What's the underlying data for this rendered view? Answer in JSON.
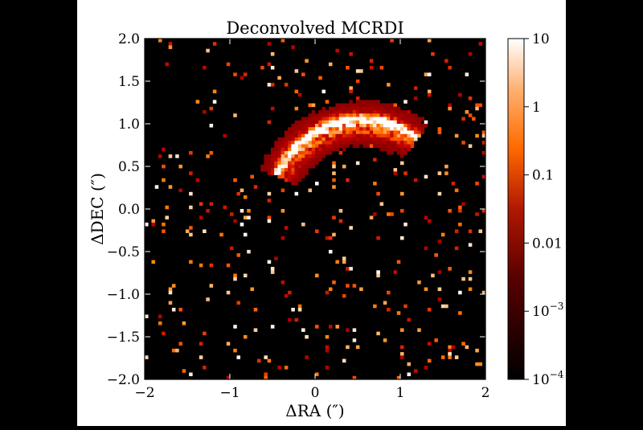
{
  "chart_data": {
    "type": "heatmap",
    "title": "Deconvolved MCRDI",
    "xlabel": "ΔRA (″)",
    "ylabel": "ΔDEC (″)",
    "xlim": [
      -2,
      2
    ],
    "ylim": [
      -2,
      2
    ],
    "x_ticks": [
      "−2",
      "−1",
      "0",
      "1",
      "2"
    ],
    "y_ticks": [
      "2.0",
      "1.5",
      "1.0",
      "0.5",
      "0.0",
      "−0.5",
      "−1.0",
      "−1.5",
      "−2.0"
    ],
    "colorbar": {
      "scale": "log",
      "range": [
        0.0001,
        10
      ],
      "colormap": "gist_heat",
      "ticks": [
        {
          "value": 10,
          "base": "10",
          "exp": ""
        },
        {
          "value": 1,
          "base": "1",
          "exp": ""
        },
        {
          "value": 0.1,
          "base": "0.1",
          "exp": ""
        },
        {
          "value": 0.01,
          "base": "0.01",
          "exp": ""
        },
        {
          "value": 0.001,
          "base": "10",
          "exp": "−3"
        },
        {
          "value": 0.0001,
          "base": "10",
          "exp": "−4"
        }
      ]
    },
    "features": {
      "arc_center": [
        0.55,
        -0.05
      ],
      "arc_radius": 1.05,
      "arc_angle_deg": [
        60,
        150
      ],
      "peak_intensity": 10,
      "background_noise": "sparse isolated bright pixels"
    }
  }
}
